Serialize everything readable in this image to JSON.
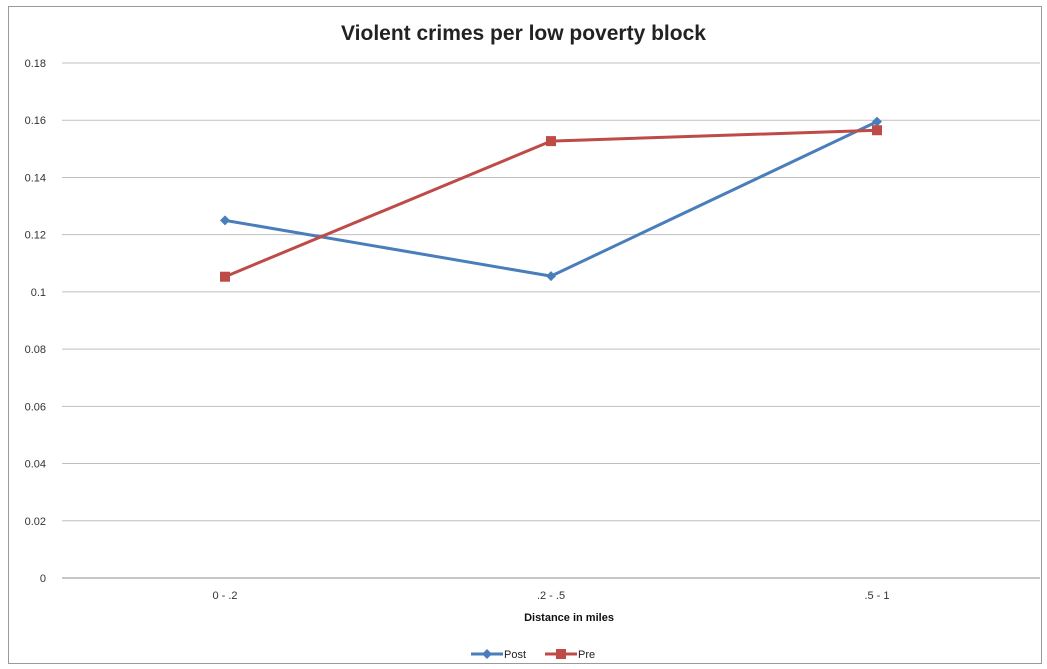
{
  "chart_data": {
    "type": "line",
    "title": "Violent crimes per low poverty block",
    "xlabel": "Distance in miles",
    "ylabel": "",
    "categories": [
      "0 - .2",
      ".2 - .5",
      ".5 - 1"
    ],
    "ylim": [
      0,
      0.18
    ],
    "yticks": [
      "0",
      "0.02",
      "0.04",
      "0.06",
      "0.08",
      "0.1",
      "0.12",
      "0.14",
      "0.16",
      "0.18"
    ],
    "grid": true,
    "legend_position": "bottom",
    "series": [
      {
        "name": "Post",
        "values": [
          0.125,
          0.1055,
          0.1595
        ],
        "color": "#4a7ebb",
        "marker": "diamond"
      },
      {
        "name": "Pre",
        "values": [
          0.1053,
          0.1527,
          0.1565
        ],
        "color": "#be4b48",
        "marker": "square"
      }
    ]
  }
}
